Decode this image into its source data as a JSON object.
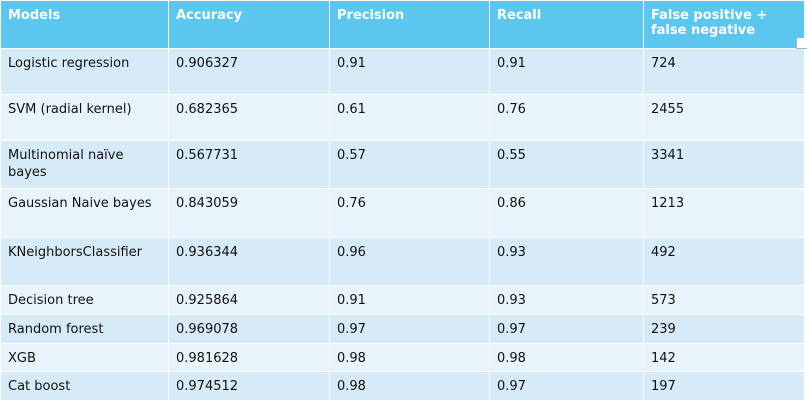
{
  "table": {
    "headers": [
      "Models",
      "Accuracy",
      "Precision",
      "Recall",
      "False positive + false negative"
    ],
    "rows": [
      {
        "model": "Logistic regression",
        "accuracy": "0.906327",
        "precision": "0.91",
        "recall": "0.91",
        "fp_fn": "724"
      },
      {
        "model": "SVM (radial kernel)",
        "accuracy": "0.682365",
        "precision": "0.61",
        "recall": "0.76",
        "fp_fn": "2455"
      },
      {
        "model": "Multinomial naïve bayes",
        "accuracy": "0.567731",
        "precision": "0.57",
        "recall": "0.55",
        "fp_fn": "3341"
      },
      {
        "model": "Gaussian Naive bayes",
        "accuracy": "0.843059",
        "precision": "0.76",
        "recall": "0.86",
        "fp_fn": "1213"
      },
      {
        "model": "KNeighborsClassifier",
        "accuracy": "0.936344",
        "precision": "0.96",
        "recall": "0.93",
        "fp_fn": "492"
      },
      {
        "model": "Decision tree",
        "accuracy": "0.925864",
        "precision": "0.91",
        "recall": "0.93",
        "fp_fn": "573"
      },
      {
        "model": "Random forest",
        "accuracy": "0.969078",
        "precision": "0.97",
        "recall": "0.97",
        "fp_fn": "239"
      },
      {
        "model": "XGB",
        "accuracy": "0.981628",
        "precision": "0.98",
        "recall": "0.98",
        "fp_fn": "142"
      },
      {
        "model": "Cat boost",
        "accuracy": "0.974512",
        "precision": "0.98",
        "recall": "0.97",
        "fp_fn": "197"
      }
    ]
  },
  "colors": {
    "header_bg": "#5bc6ee",
    "header_text": "#ffffff",
    "row_band_a": "#d6ebf7",
    "row_band_b": "#e8f4fb",
    "cell_text": "#111111"
  }
}
